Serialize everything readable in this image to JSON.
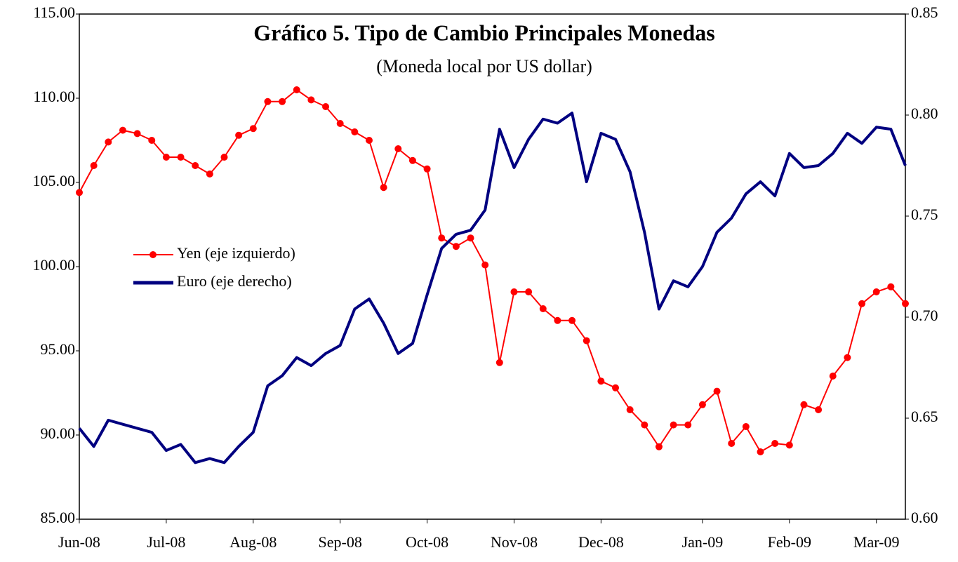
{
  "chart_data": {
    "type": "line",
    "title": "Gráfico 5. Tipo de Cambio Principales Monedas",
    "subtitle": "(Moneda local por US dollar)",
    "categories": [
      "Jun-08",
      null,
      null,
      null,
      null,
      null,
      "Jul-08",
      null,
      null,
      null,
      null,
      null,
      "Aug-08",
      null,
      null,
      null,
      null,
      null,
      "Sep-08",
      null,
      null,
      null,
      null,
      null,
      "Oct-08",
      null,
      null,
      null,
      null,
      null,
      "Nov-08",
      null,
      null,
      null,
      null,
      null,
      "Dec-08",
      null,
      null,
      null,
      null,
      null,
      null,
      "Jan-09",
      null,
      null,
      null,
      null,
      null,
      "Feb-09",
      null,
      null,
      null,
      null,
      null,
      "Mar-09",
      null,
      null
    ],
    "series": [
      {
        "name": "Yen (eje izquierdo)",
        "color": "#ff0000",
        "axis": "y",
        "marker": "circle",
        "values": [
          104.4,
          106.0,
          107.4,
          108.1,
          107.9,
          107.5,
          106.5,
          106.5,
          106.0,
          105.5,
          106.5,
          107.8,
          108.2,
          109.8,
          109.8,
          110.5,
          109.9,
          109.5,
          108.5,
          108.0,
          107.5,
          104.7,
          107.0,
          106.3,
          105.8,
          101.7,
          101.2,
          101.7,
          100.1,
          94.3,
          98.5,
          98.5,
          97.5,
          96.8,
          96.8,
          95.6,
          93.2,
          92.8,
          91.5,
          90.6,
          89.3,
          90.6,
          90.6,
          91.8,
          92.6,
          89.5,
          90.5,
          89.0,
          89.5,
          89.4,
          91.8,
          91.5,
          93.5,
          94.6,
          97.8,
          98.5,
          98.8,
          97.8
        ]
      },
      {
        "name": "Euro (eje derecho)",
        "color": "#000080",
        "axis": "y2",
        "values": [
          0.645,
          0.636,
          0.649,
          0.647,
          0.645,
          0.643,
          0.634,
          0.637,
          0.628,
          0.63,
          0.628,
          0.636,
          0.643,
          0.666,
          0.671,
          0.68,
          0.676,
          0.682,
          0.686,
          0.704,
          0.709,
          0.697,
          0.682,
          0.687,
          0.711,
          0.734,
          0.741,
          0.743,
          0.753,
          0.793,
          0.774,
          0.788,
          0.798,
          0.796,
          0.801,
          0.767,
          0.791,
          0.788,
          0.772,
          0.742,
          0.704,
          0.718,
          0.715,
          0.725,
          0.742,
          0.749,
          0.761,
          0.767,
          0.76,
          0.781,
          0.774,
          0.775,
          0.781,
          0.791,
          0.786,
          0.794,
          0.793,
          0.775
        ]
      }
    ],
    "ylim": [
      85,
      115
    ],
    "yticks": [
      {
        "value": 85,
        "label": "85.00"
      },
      {
        "value": 90,
        "label": "90.00"
      },
      {
        "value": 95,
        "label": "95.00"
      },
      {
        "value": 100,
        "label": "100.00"
      },
      {
        "value": 105,
        "label": "105.00"
      },
      {
        "value": 110,
        "label": "110.00"
      },
      {
        "value": 115,
        "label": "115.00"
      }
    ],
    "y2lim": [
      0.6,
      0.85
    ],
    "y2ticks": [
      {
        "value": 0.6,
        "label": "0.60"
      },
      {
        "value": 0.65,
        "label": "0.65"
      },
      {
        "value": 0.7,
        "label": "0.70"
      },
      {
        "value": 0.75,
        "label": "0.75"
      },
      {
        "value": 0.8,
        "label": "0.80"
      },
      {
        "value": 0.85,
        "label": "0.85"
      }
    ],
    "grid": false,
    "legend": "left"
  }
}
